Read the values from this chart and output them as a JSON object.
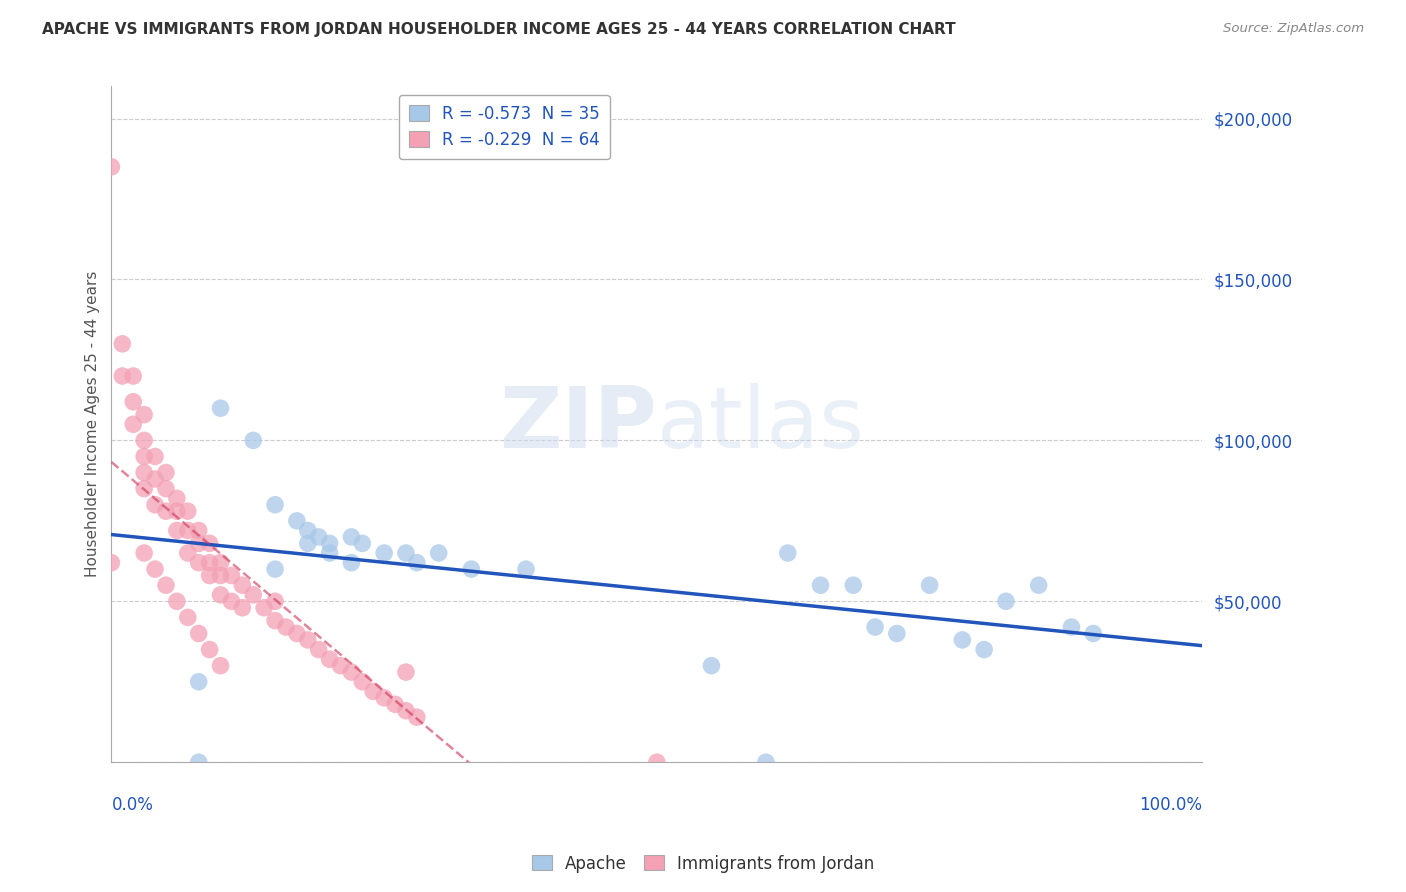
{
  "title": "APACHE VS IMMIGRANTS FROM JORDAN HOUSEHOLDER INCOME AGES 25 - 44 YEARS CORRELATION CHART",
  "source": "Source: ZipAtlas.com",
  "ylabel": "Householder Income Ages 25 - 44 years",
  "xlim": [
    0,
    100
  ],
  "ylim": [
    0,
    210000
  ],
  "legend_apache": "R = -0.573  N = 35",
  "legend_jordan": "R = -0.229  N = 64",
  "apache_color": "#a8c8e8",
  "jordan_color": "#f4a0b5",
  "apache_line_color": "#2255bb",
  "jordan_line_color": "#cc3355",
  "watermark_color": "#ccdaee",
  "apache_x": [
    8,
    8,
    10,
    13,
    15,
    17,
    18,
    18,
    19,
    20,
    20,
    22,
    22,
    23,
    25,
    27,
    28,
    30,
    33,
    38,
    55,
    62,
    65,
    68,
    70,
    72,
    75,
    78,
    80,
    82,
    85,
    88,
    90,
    15,
    60
  ],
  "apache_y": [
    0,
    25000,
    110000,
    100000,
    80000,
    75000,
    72000,
    68000,
    70000,
    68000,
    65000,
    70000,
    62000,
    68000,
    65000,
    65000,
    62000,
    65000,
    60000,
    60000,
    30000,
    65000,
    55000,
    55000,
    42000,
    40000,
    55000,
    38000,
    35000,
    50000,
    55000,
    42000,
    40000,
    60000,
    0
  ],
  "jordan_x": [
    0,
    1,
    1,
    2,
    2,
    2,
    3,
    3,
    3,
    3,
    3,
    4,
    4,
    4,
    5,
    5,
    5,
    6,
    6,
    6,
    7,
    7,
    7,
    8,
    8,
    8,
    9,
    9,
    9,
    10,
    10,
    10,
    11,
    11,
    12,
    12,
    13,
    14,
    15,
    15,
    16,
    17,
    18,
    19,
    20,
    21,
    22,
    23,
    24,
    25,
    26,
    27,
    27,
    28,
    3,
    4,
    5,
    6,
    7,
    8,
    9,
    10,
    50,
    0
  ],
  "jordan_y": [
    185000,
    130000,
    120000,
    120000,
    112000,
    105000,
    108000,
    100000,
    95000,
    90000,
    85000,
    95000,
    88000,
    80000,
    90000,
    85000,
    78000,
    82000,
    78000,
    72000,
    78000,
    72000,
    65000,
    72000,
    68000,
    62000,
    68000,
    62000,
    58000,
    62000,
    58000,
    52000,
    58000,
    50000,
    55000,
    48000,
    52000,
    48000,
    50000,
    44000,
    42000,
    40000,
    38000,
    35000,
    32000,
    30000,
    28000,
    25000,
    22000,
    20000,
    18000,
    16000,
    28000,
    14000,
    65000,
    60000,
    55000,
    50000,
    45000,
    40000,
    35000,
    30000,
    0,
    62000
  ],
  "apache_line_x": [
    0,
    100
  ],
  "apache_line_y": [
    78000,
    35000
  ],
  "jordan_line_x": [
    0,
    30
  ],
  "jordan_line_y": [
    72000,
    10000
  ]
}
